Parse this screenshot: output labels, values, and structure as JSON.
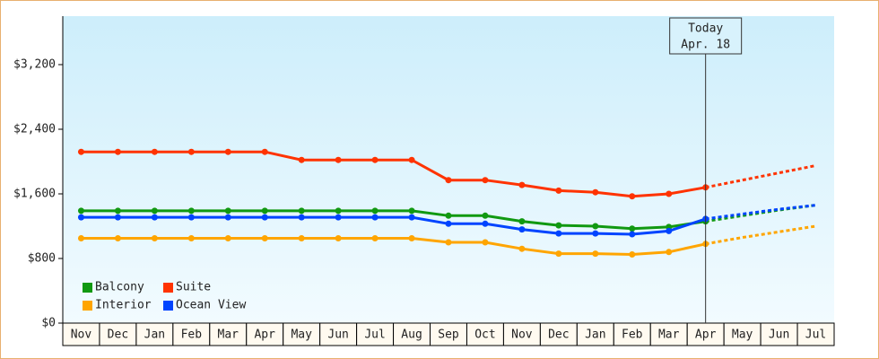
{
  "chart_data": {
    "type": "line",
    "categories": [
      "Nov",
      "Dec",
      "Jan",
      "Feb",
      "Mar",
      "Apr",
      "May",
      "Jun",
      "Jul",
      "Aug",
      "Sep",
      "Oct",
      "Nov",
      "Dec",
      "Jan",
      "Feb",
      "Mar",
      "Apr",
      "May",
      "Jun",
      "Jul"
    ],
    "series": [
      {
        "name": "Balcony",
        "color": "#119911",
        "values": [
          1390,
          1390,
          1390,
          1390,
          1390,
          1390,
          1390,
          1390,
          1390,
          1390,
          1330,
          1330,
          1260,
          1210,
          1200,
          1170,
          1190,
          1260,
          null,
          null,
          null
        ],
        "forecast": [
          null,
          null,
          null,
          null,
          null,
          null,
          null,
          null,
          null,
          null,
          null,
          null,
          null,
          null,
          null,
          null,
          null,
          1260,
          1330,
          1400,
          1460
        ]
      },
      {
        "name": "Suite",
        "color": "#ff3300",
        "values": [
          2120,
          2120,
          2120,
          2120,
          2120,
          2120,
          2020,
          2020,
          2020,
          2020,
          1770,
          1770,
          1710,
          1640,
          1620,
          1570,
          1600,
          1680,
          null,
          null,
          null
        ],
        "forecast": [
          null,
          null,
          null,
          null,
          null,
          null,
          null,
          null,
          null,
          null,
          null,
          null,
          null,
          null,
          null,
          null,
          null,
          1680,
          1770,
          1860,
          1950
        ]
      },
      {
        "name": "Interior",
        "color": "#ffa500",
        "values": [
          1050,
          1050,
          1050,
          1050,
          1050,
          1050,
          1050,
          1050,
          1050,
          1050,
          1000,
          1000,
          920,
          860,
          860,
          850,
          880,
          980,
          null,
          null,
          null
        ],
        "forecast": [
          null,
          null,
          null,
          null,
          null,
          null,
          null,
          null,
          null,
          null,
          null,
          null,
          null,
          null,
          null,
          null,
          null,
          980,
          1060,
          1130,
          1200
        ]
      },
      {
        "name": "Ocean View",
        "color": "#0044ff",
        "values": [
          1310,
          1310,
          1310,
          1310,
          1310,
          1310,
          1310,
          1310,
          1310,
          1310,
          1230,
          1230,
          1160,
          1110,
          1110,
          1100,
          1140,
          1290,
          null,
          null,
          null
        ],
        "forecast": [
          null,
          null,
          null,
          null,
          null,
          null,
          null,
          null,
          null,
          null,
          null,
          null,
          null,
          null,
          null,
          null,
          null,
          1290,
          1350,
          1410,
          1460
        ]
      }
    ],
    "ylim": [
      0,
      3800
    ],
    "yticks": [
      {
        "value": 0,
        "label": "$0"
      },
      {
        "value": 800,
        "label": "$800"
      },
      {
        "value": 1600,
        "label": "$1,600"
      },
      {
        "value": 2400,
        "label": "$2,400"
      },
      {
        "value": 3200,
        "label": "$3,200"
      }
    ],
    "today": {
      "label": "Today",
      "date": "Apr. 18"
    },
    "grid": false
  }
}
